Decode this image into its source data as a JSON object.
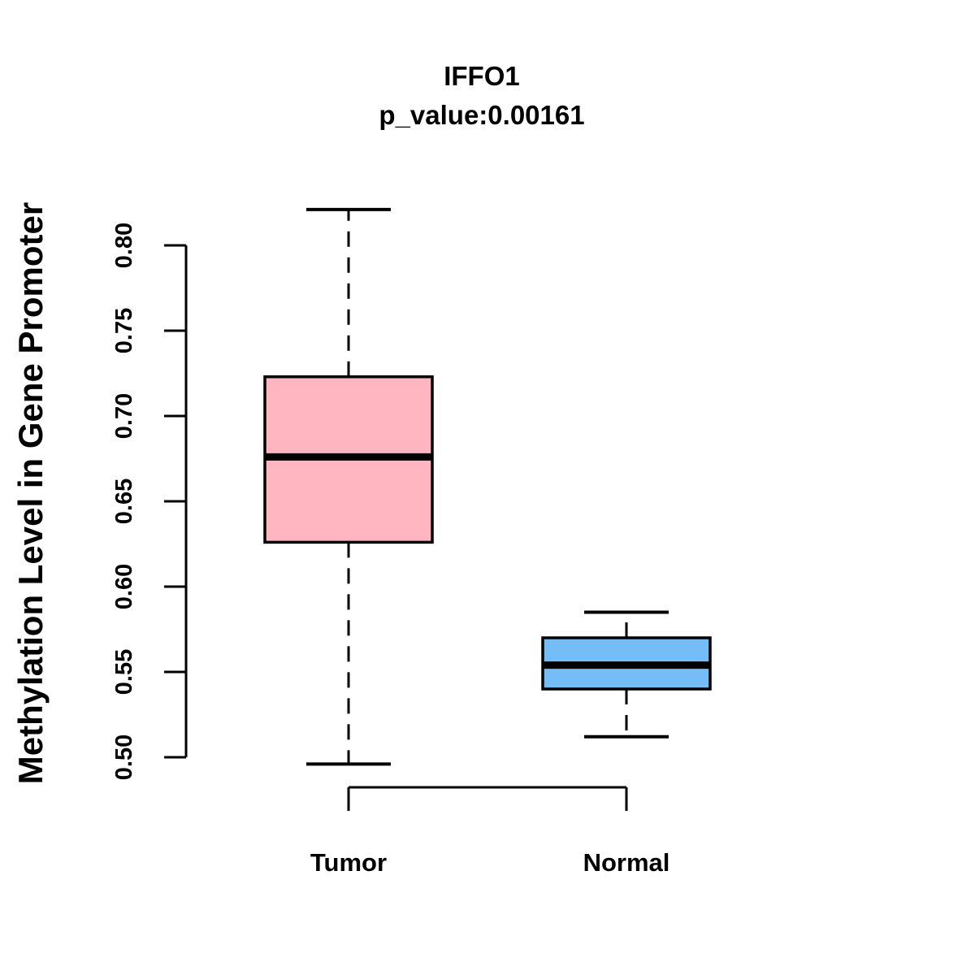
{
  "header": {
    "title": "IFFO1",
    "subtitle": "p_value:0.00161",
    "p_value": "0.00161"
  },
  "axes": {
    "ylabel": "Methylation Level in Gene Promoter",
    "ytick_labels": [
      "0.50",
      "0.55",
      "0.60",
      "0.65",
      "0.70",
      "0.75",
      "0.80"
    ],
    "categories": [
      "Tumor",
      "Normal"
    ]
  },
  "colors": {
    "tumor_fill": "#FFB6C1",
    "normal_fill": "#74BDF6",
    "stroke": "#000000",
    "background": "#FFFFFF"
  },
  "chart_data": {
    "type": "boxplot",
    "title": "IFFO1",
    "subtitle": "p_value:0.00161",
    "ylabel": "Methylation Level in Gene Promoter",
    "xlabel": "",
    "categories": [
      "Tumor",
      "Normal"
    ],
    "yticks": [
      0.5,
      0.55,
      0.6,
      0.65,
      0.7,
      0.75,
      0.8
    ],
    "ylim": [
      0.496,
      0.821
    ],
    "grid": false,
    "legend": "none",
    "series": [
      {
        "name": "Tumor",
        "color": "#FFB6C1",
        "whisker_low": 0.496,
        "q1": 0.626,
        "median": 0.676,
        "q3": 0.723,
        "whisker_high": 0.821
      },
      {
        "name": "Normal",
        "color": "#74BDF6",
        "whisker_low": 0.512,
        "q1": 0.54,
        "median": 0.554,
        "q3": 0.57,
        "whisker_high": 0.585
      }
    ]
  }
}
